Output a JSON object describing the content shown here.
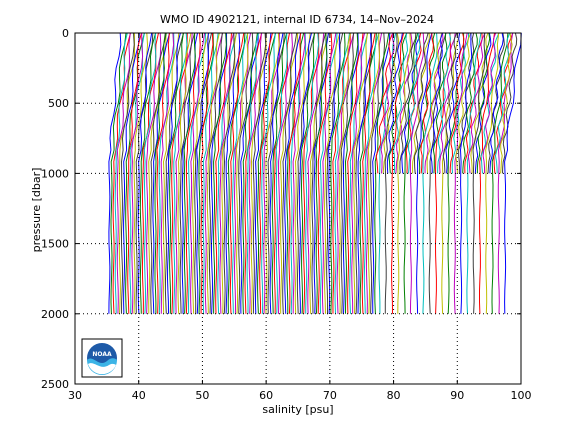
{
  "chart_data": {
    "type": "line",
    "title": "WMO ID 4902121, internal ID 6734, 14–Nov–2024",
    "xlabel": "salinity [psu]",
    "ylabel": "pressure [dbar]",
    "xlim": [
      30,
      100
    ],
    "ylim": [
      0,
      2500
    ],
    "y_reversed": true,
    "x_ticks": [
      30,
      40,
      50,
      60,
      70,
      80,
      90,
      100
    ],
    "y_ticks": [
      0,
      500,
      1000,
      1500,
      2000,
      2500
    ],
    "grid": "dotted",
    "logo": "NOAA",
    "profiles": {
      "note_count": 190,
      "start_salinity": 35.4,
      "end_salinity": 97.5,
      "deep_pressure": 2000,
      "shallow_group_start": 77.2,
      "shallow_group_pressure": 1000,
      "color_cycle": [
        "#0000ff",
        "#008000",
        "#ff0000",
        "#00bfbf",
        "#bf00bf",
        "#bfbf00",
        "#3f3f3f"
      ]
    }
  }
}
